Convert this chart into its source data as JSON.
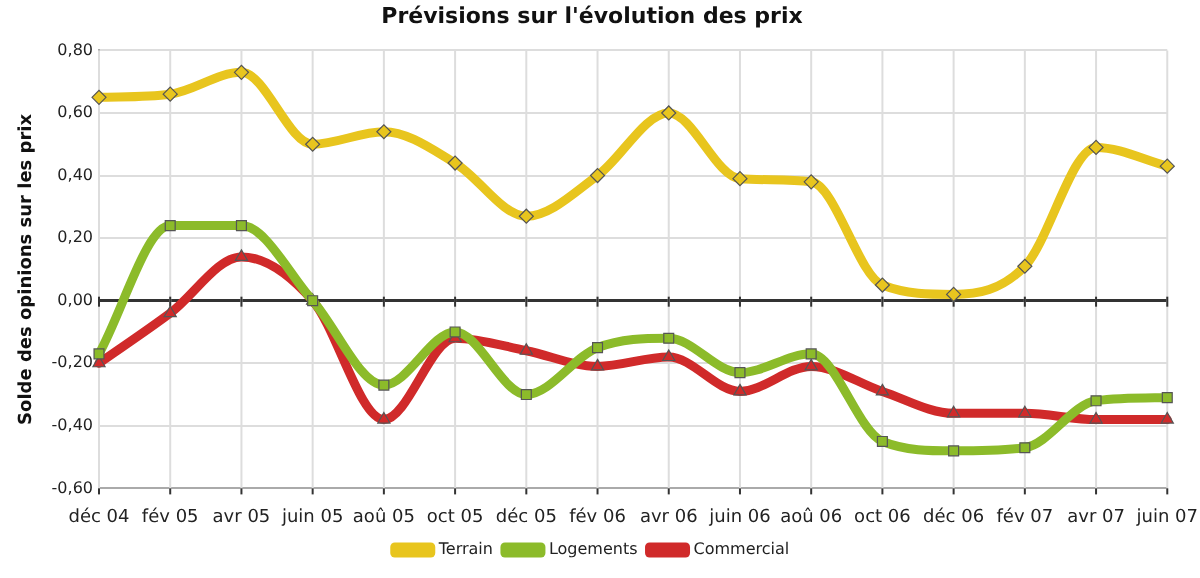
{
  "chart_data": {
    "type": "line",
    "title": "Prévisions sur l'évolution des prix",
    "ylabel": "Solde des opinions sur les prix",
    "categories": [
      "déc 04",
      "fév 05",
      "avr 05",
      "juin 05",
      "aoû 05",
      "oct 05",
      "déc 05",
      "fév 06",
      "avr 06",
      "juin 06",
      "aoû 06",
      "oct 06",
      "déc 06",
      "fév 07",
      "avr 07",
      "juin 07"
    ],
    "series": [
      {
        "name": "Terrain",
        "color": "#e8c51e",
        "marker": "diamond",
        "values": [
          0.65,
          0.66,
          0.73,
          0.5,
          0.54,
          0.44,
          0.27,
          0.4,
          0.6,
          0.39,
          0.38,
          0.05,
          0.02,
          0.11,
          0.49,
          0.43
        ]
      },
      {
        "name": "Logements",
        "color": "#8cbb2a",
        "marker": "square",
        "values": [
          -0.17,
          0.24,
          0.24,
          0.0,
          -0.27,
          -0.1,
          -0.3,
          -0.15,
          -0.12,
          -0.23,
          -0.17,
          -0.45,
          -0.48,
          -0.47,
          -0.32,
          -0.31
        ]
      },
      {
        "name": "Commercial",
        "color": "#d02a2a",
        "marker": "triangle",
        "values": [
          -0.2,
          -0.04,
          0.14,
          0.0,
          -0.38,
          -0.12,
          -0.16,
          -0.21,
          -0.18,
          -0.29,
          -0.21,
          -0.29,
          -0.36,
          -0.36,
          -0.38,
          -0.38
        ]
      }
    ],
    "ylim": [
      -0.6,
      0.8
    ],
    "yticks": [
      {
        "value": -0.6,
        "label": "-0,60"
      },
      {
        "value": -0.4,
        "label": "-0,40"
      },
      {
        "value": -0.2,
        "label": "-0,20"
      },
      {
        "value": 0,
        "label": "0,00"
      },
      {
        "value": 0.2,
        "label": "0,20"
      },
      {
        "value": 0.4,
        "label": "0,40"
      },
      {
        "value": 0.6,
        "label": "0,60"
      },
      {
        "value": 0.8,
        "label": "0,80"
      }
    ],
    "grid": true,
    "legend": "bottom",
    "line_style": "solid"
  }
}
